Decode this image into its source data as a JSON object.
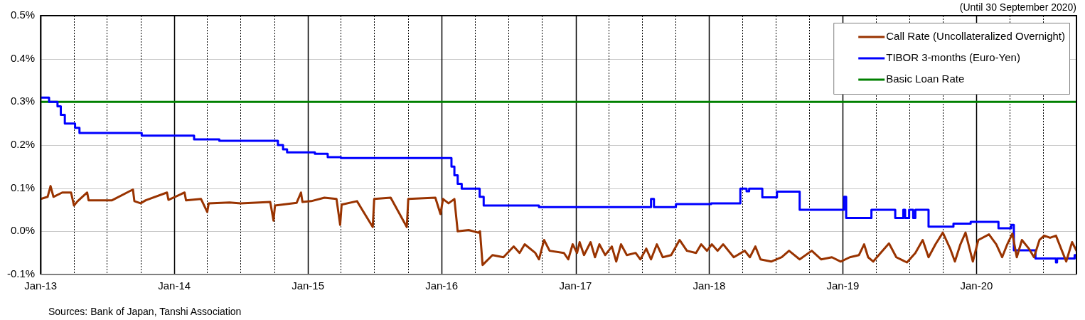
{
  "chart_data": {
    "type": "line",
    "annotations": [
      "(Until 30 September 2020)",
      "Sources: Bank of Japan, Tanshi Association"
    ],
    "xlim": [
      "2013-01-01",
      "2020-09-30"
    ],
    "xticks": [
      {
        "value": "2013-01-01",
        "label": "Jan-13"
      },
      {
        "value": "2013-04-01",
        "label": null
      },
      {
        "value": "2013-07-01",
        "label": null
      },
      {
        "value": "2013-10-01",
        "label": null
      },
      {
        "value": "2014-01-01",
        "label": "Jan-14"
      },
      {
        "value": "2014-04-01",
        "label": null
      },
      {
        "value": "2014-07-01",
        "label": null
      },
      {
        "value": "2014-10-01",
        "label": null
      },
      {
        "value": "2015-01-01",
        "label": "Jan-15"
      },
      {
        "value": "2015-04-01",
        "label": null
      },
      {
        "value": "2015-07-01",
        "label": null
      },
      {
        "value": "2015-10-01",
        "label": null
      },
      {
        "value": "2016-01-01",
        "label": "Jan-16"
      },
      {
        "value": "2016-04-01",
        "label": null
      },
      {
        "value": "2016-07-01",
        "label": null
      },
      {
        "value": "2016-10-01",
        "label": null
      },
      {
        "value": "2017-01-01",
        "label": "Jan-17"
      },
      {
        "value": "2017-04-01",
        "label": null
      },
      {
        "value": "2017-07-01",
        "label": null
      },
      {
        "value": "2017-10-01",
        "label": null
      },
      {
        "value": "2018-01-01",
        "label": "Jan-18"
      },
      {
        "value": "2018-04-01",
        "label": null
      },
      {
        "value": "2018-07-01",
        "label": null
      },
      {
        "value": "2018-10-01",
        "label": null
      },
      {
        "value": "2019-01-01",
        "label": "Jan-19"
      },
      {
        "value": "2019-04-01",
        "label": null
      },
      {
        "value": "2019-07-01",
        "label": null
      },
      {
        "value": "2019-10-01",
        "label": null
      },
      {
        "value": "2020-01-01",
        "label": "Jan-20"
      },
      {
        "value": "2020-04-01",
        "label": null
      },
      {
        "value": "2020-07-01",
        "label": null
      }
    ],
    "ylim": [
      -0.1,
      0.5
    ],
    "yticks": [
      {
        "value": -0.1,
        "label": "-0.1%"
      },
      {
        "value": 0,
        "label": "0.0%"
      },
      {
        "value": 0.1,
        "label": "0.1%"
      },
      {
        "value": 0.2,
        "label": "0.2%"
      },
      {
        "value": 0.3,
        "label": "0.3%"
      },
      {
        "value": 0.4,
        "label": "0.4%"
      },
      {
        "value": 0.5,
        "label": "0.5%"
      }
    ],
    "grid": true,
    "legend": "top right",
    "marker": "none",
    "line_style": "solid",
    "series": [
      {
        "name": "Call Rate (Uncollateralized Overnight)",
        "color": "#993300",
        "x": [
          "2013-01-01",
          "2013-01-20",
          "2013-01-28",
          "2013-02-05",
          "2013-03-01",
          "2013-03-25",
          "2013-04-02",
          "2013-04-12",
          "2013-05-08",
          "2013-05-12",
          "2013-07-15",
          "2013-09-10",
          "2013-09-14",
          "2013-10-01",
          "2013-10-15",
          "2013-12-12",
          "2013-12-16",
          "2014-01-29",
          "2014-02-02",
          "2014-03-15",
          "2014-04-01",
          "2014-04-05",
          "2014-06-01",
          "2014-07-01",
          "2014-09-20",
          "2014-09-29",
          "2014-10-03",
          "2014-12-01",
          "2014-12-13",
          "2014-12-17",
          "2015-01-10",
          "2015-02-15",
          "2015-03-20",
          "2015-03-30",
          "2015-04-03",
          "2015-05-15",
          "2015-06-27",
          "2015-07-01",
          "2015-08-15",
          "2015-09-28",
          "2015-10-02",
          "2015-12-15",
          "2015-12-29",
          "2016-01-05",
          "2016-01-20",
          "2016-02-05",
          "2016-02-14",
          "2016-03-15",
          "2016-04-10",
          "2016-04-15",
          "2016-04-22",
          "2016-05-19",
          "2016-06-18",
          "2016-07-16",
          "2016-08-01",
          "2016-08-15",
          "2016-09-13",
          "2016-09-23",
          "2016-10-07",
          "2016-10-22",
          "2016-11-30",
          "2016-12-12",
          "2016-12-24",
          "2017-01-05",
          "2017-01-12",
          "2017-01-24",
          "2017-02-11",
          "2017-02-23",
          "2017-03-07",
          "2017-03-23",
          "2017-04-10",
          "2017-04-22",
          "2017-05-05",
          "2017-05-21",
          "2017-06-14",
          "2017-06-27",
          "2017-07-13",
          "2017-07-26",
          "2017-08-11",
          "2017-08-27",
          "2017-09-19",
          "2017-10-12",
          "2017-11-01",
          "2017-11-26",
          "2017-12-10",
          "2017-12-26",
          "2018-01-08",
          "2018-01-24",
          "2018-02-08",
          "2018-03-09",
          "2018-04-08",
          "2018-04-22",
          "2018-05-07",
          "2018-05-21",
          "2018-06-19",
          "2018-07-18",
          "2018-08-07",
          "2018-09-05",
          "2018-10-08",
          "2018-11-03",
          "2018-12-02",
          "2018-12-26",
          "2019-01-20",
          "2019-02-14",
          "2019-02-28",
          "2019-03-11",
          "2019-03-25",
          "2019-04-14",
          "2019-05-07",
          "2019-05-27",
          "2019-06-25",
          "2019-07-18",
          "2019-08-07",
          "2019-08-23",
          "2019-09-11",
          "2019-10-01",
          "2019-10-21",
          "2019-11-03",
          "2019-11-18",
          "2019-12-02",
          "2019-12-22",
          "2020-01-06",
          "2020-02-04",
          "2020-02-24",
          "2020-03-11",
          "2020-03-25",
          "2020-04-08",
          "2020-04-20",
          "2020-05-04",
          "2020-05-23",
          "2020-06-06",
          "2020-06-21",
          "2020-07-04",
          "2020-07-20",
          "2020-08-05",
          "2020-08-19",
          "2020-09-02",
          "2020-09-18",
          "2020-09-30"
        ],
        "values": [
          0.075,
          0.08,
          0.105,
          0.08,
          0.09,
          0.09,
          0.06,
          0.07,
          0.09,
          0.072,
          0.072,
          0.097,
          0.07,
          0.065,
          0.072,
          0.09,
          0.073,
          0.09,
          0.072,
          0.075,
          0.045,
          0.065,
          0.067,
          0.065,
          0.068,
          0.025,
          0.06,
          0.066,
          0.09,
          0.068,
          0.07,
          0.078,
          0.075,
          0.015,
          0.062,
          0.07,
          0.01,
          0.075,
          0.078,
          0.01,
          0.075,
          0.078,
          0.04,
          0.075,
          0.065,
          0.075,
          0.0,
          0.003,
          -0.003,
          0.0,
          -0.078,
          -0.055,
          -0.06,
          -0.035,
          -0.05,
          -0.03,
          -0.05,
          -0.065,
          -0.02,
          -0.045,
          -0.05,
          -0.065,
          -0.03,
          -0.05,
          -0.025,
          -0.055,
          -0.025,
          -0.06,
          -0.03,
          -0.055,
          -0.035,
          -0.07,
          -0.03,
          -0.055,
          -0.05,
          -0.065,
          -0.04,
          -0.065,
          -0.03,
          -0.06,
          -0.055,
          -0.02,
          -0.045,
          -0.05,
          -0.03,
          -0.045,
          -0.03,
          -0.045,
          -0.03,
          -0.06,
          -0.045,
          -0.06,
          -0.035,
          -0.065,
          -0.07,
          -0.06,
          -0.045,
          -0.065,
          -0.045,
          -0.065,
          -0.06,
          -0.07,
          -0.06,
          -0.055,
          -0.03,
          -0.06,
          -0.07,
          -0.05,
          -0.028,
          -0.06,
          -0.072,
          -0.05,
          -0.02,
          -0.06,
          -0.03,
          -0.003,
          -0.04,
          -0.07,
          -0.03,
          -0.003,
          -0.07,
          -0.02,
          -0.007,
          -0.03,
          -0.06,
          -0.03,
          -0.005,
          -0.06,
          -0.02,
          -0.04,
          -0.06,
          -0.02,
          -0.01,
          -0.015,
          -0.01,
          -0.04,
          -0.07,
          -0.025,
          -0.045
        ]
      },
      {
        "name": "TIBOR 3-months (Euro-Yen)",
        "color": "#0000ff",
        "type": "step",
        "x": [
          "2013-01-01",
          "2013-01-24",
          "2013-02-16",
          "2013-02-25",
          "2013-03-08",
          "2013-04-05",
          "2013-04-17",
          "2013-10-04",
          "2014-02-24",
          "2014-05-04",
          "2014-10-11",
          "2014-10-25",
          "2014-11-05",
          "2015-01-20",
          "2015-02-24",
          "2015-04-01",
          "2016-01-28",
          "2016-02-05",
          "2016-02-14",
          "2016-02-25",
          "2016-04-14",
          "2016-04-25",
          "2016-09-23",
          "2017-07-26",
          "2017-08-03",
          "2017-10-02",
          "2018-01-06",
          "2018-03-27",
          "2018-04-13",
          "2018-04-20",
          "2018-05-26",
          "2018-07-05",
          "2018-09-05",
          "2019-01-04",
          "2019-01-10",
          "2019-03-20",
          "2019-05-24",
          "2019-06-15",
          "2019-06-20",
          "2019-07-01",
          "2019-07-12",
          "2019-07-18",
          "2019-08-23",
          "2019-10-30",
          "2019-12-16",
          "2020-03-01",
          "2020-04-05",
          "2020-04-12",
          "2020-06-10",
          "2020-08-05",
          "2020-08-08",
          "2020-09-25",
          "2020-09-30"
        ],
        "values": [
          0.31,
          0.3,
          0.29,
          0.27,
          0.25,
          0.24,
          0.228,
          0.222,
          0.213,
          0.21,
          0.2,
          0.19,
          0.183,
          0.18,
          0.172,
          0.17,
          0.15,
          0.13,
          0.11,
          0.099,
          0.08,
          0.06,
          0.056,
          0.075,
          0.056,
          0.063,
          0.065,
          0.099,
          0.093,
          0.099,
          0.079,
          0.092,
          0.05,
          0.08,
          0.031,
          0.05,
          0.031,
          0.05,
          0.031,
          0.05,
          0.031,
          0.05,
          0.011,
          0.018,
          0.022,
          0.007,
          0.015,
          -0.044,
          -0.063,
          -0.072,
          -0.063,
          -0.055,
          -0.055
        ]
      },
      {
        "name": "Basic Loan Rate",
        "color": "#008000",
        "x": [
          "2013-01-01",
          "2020-09-30"
        ],
        "values": [
          0.3,
          0.3
        ]
      }
    ]
  }
}
